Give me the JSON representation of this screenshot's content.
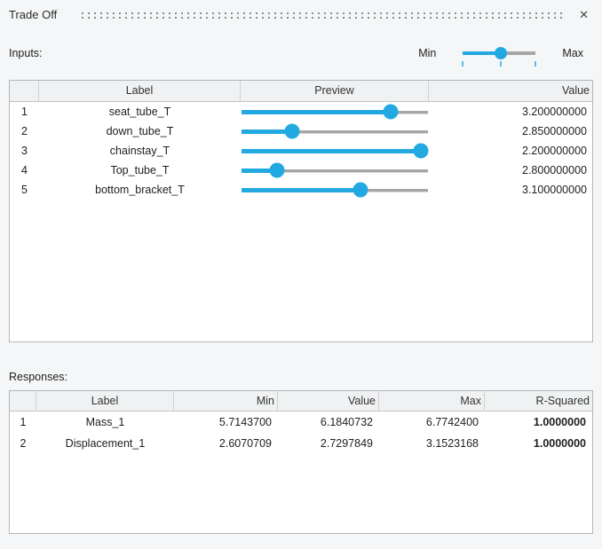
{
  "title": "Trade Off",
  "close_icon": "✕",
  "colors": {
    "accent_blue": "#23a9e1",
    "tick_blue": "#57bee8",
    "track_gray": "#a6a6a6"
  },
  "inputs": {
    "section_label": "Inputs:",
    "range_slider": {
      "min_label": "Min",
      "max_label": "Max",
      "position_pct": 52,
      "ticks_pct": [
        0,
        52,
        100
      ]
    },
    "table": {
      "headers": {
        "num": "",
        "label": "Label",
        "preview": "Preview",
        "value": "Value"
      },
      "rows": [
        {
          "num": "1",
          "label": "seat_tube_T",
          "slider_pct": 80,
          "value": "3.200000000"
        },
        {
          "num": "2",
          "label": "down_tube_T",
          "slider_pct": 27,
          "value": "2.850000000"
        },
        {
          "num": "3",
          "label": "chainstay_T",
          "slider_pct": 96,
          "value": "2.200000000"
        },
        {
          "num": "4",
          "label": "Top_tube_T",
          "slider_pct": 19,
          "value": "2.800000000"
        },
        {
          "num": "5",
          "label": "bottom_bracket_T",
          "slider_pct": 64,
          "value": "3.100000000"
        }
      ]
    }
  },
  "responses": {
    "section_label": "Responses:",
    "table": {
      "headers": {
        "num": "",
        "label": "Label",
        "min": "Min",
        "value": "Value",
        "max": "Max",
        "r_squared": "R-Squared"
      },
      "rows": [
        {
          "num": "1",
          "label": "Mass_1",
          "min": "5.7143700",
          "value": "6.1840732",
          "max": "6.7742400",
          "r_squared": "1.0000000"
        },
        {
          "num": "2",
          "label": "Displacement_1",
          "min": "2.6070709",
          "value": "2.7297849",
          "max": "3.1523168",
          "r_squared": "1.0000000"
        }
      ]
    }
  }
}
